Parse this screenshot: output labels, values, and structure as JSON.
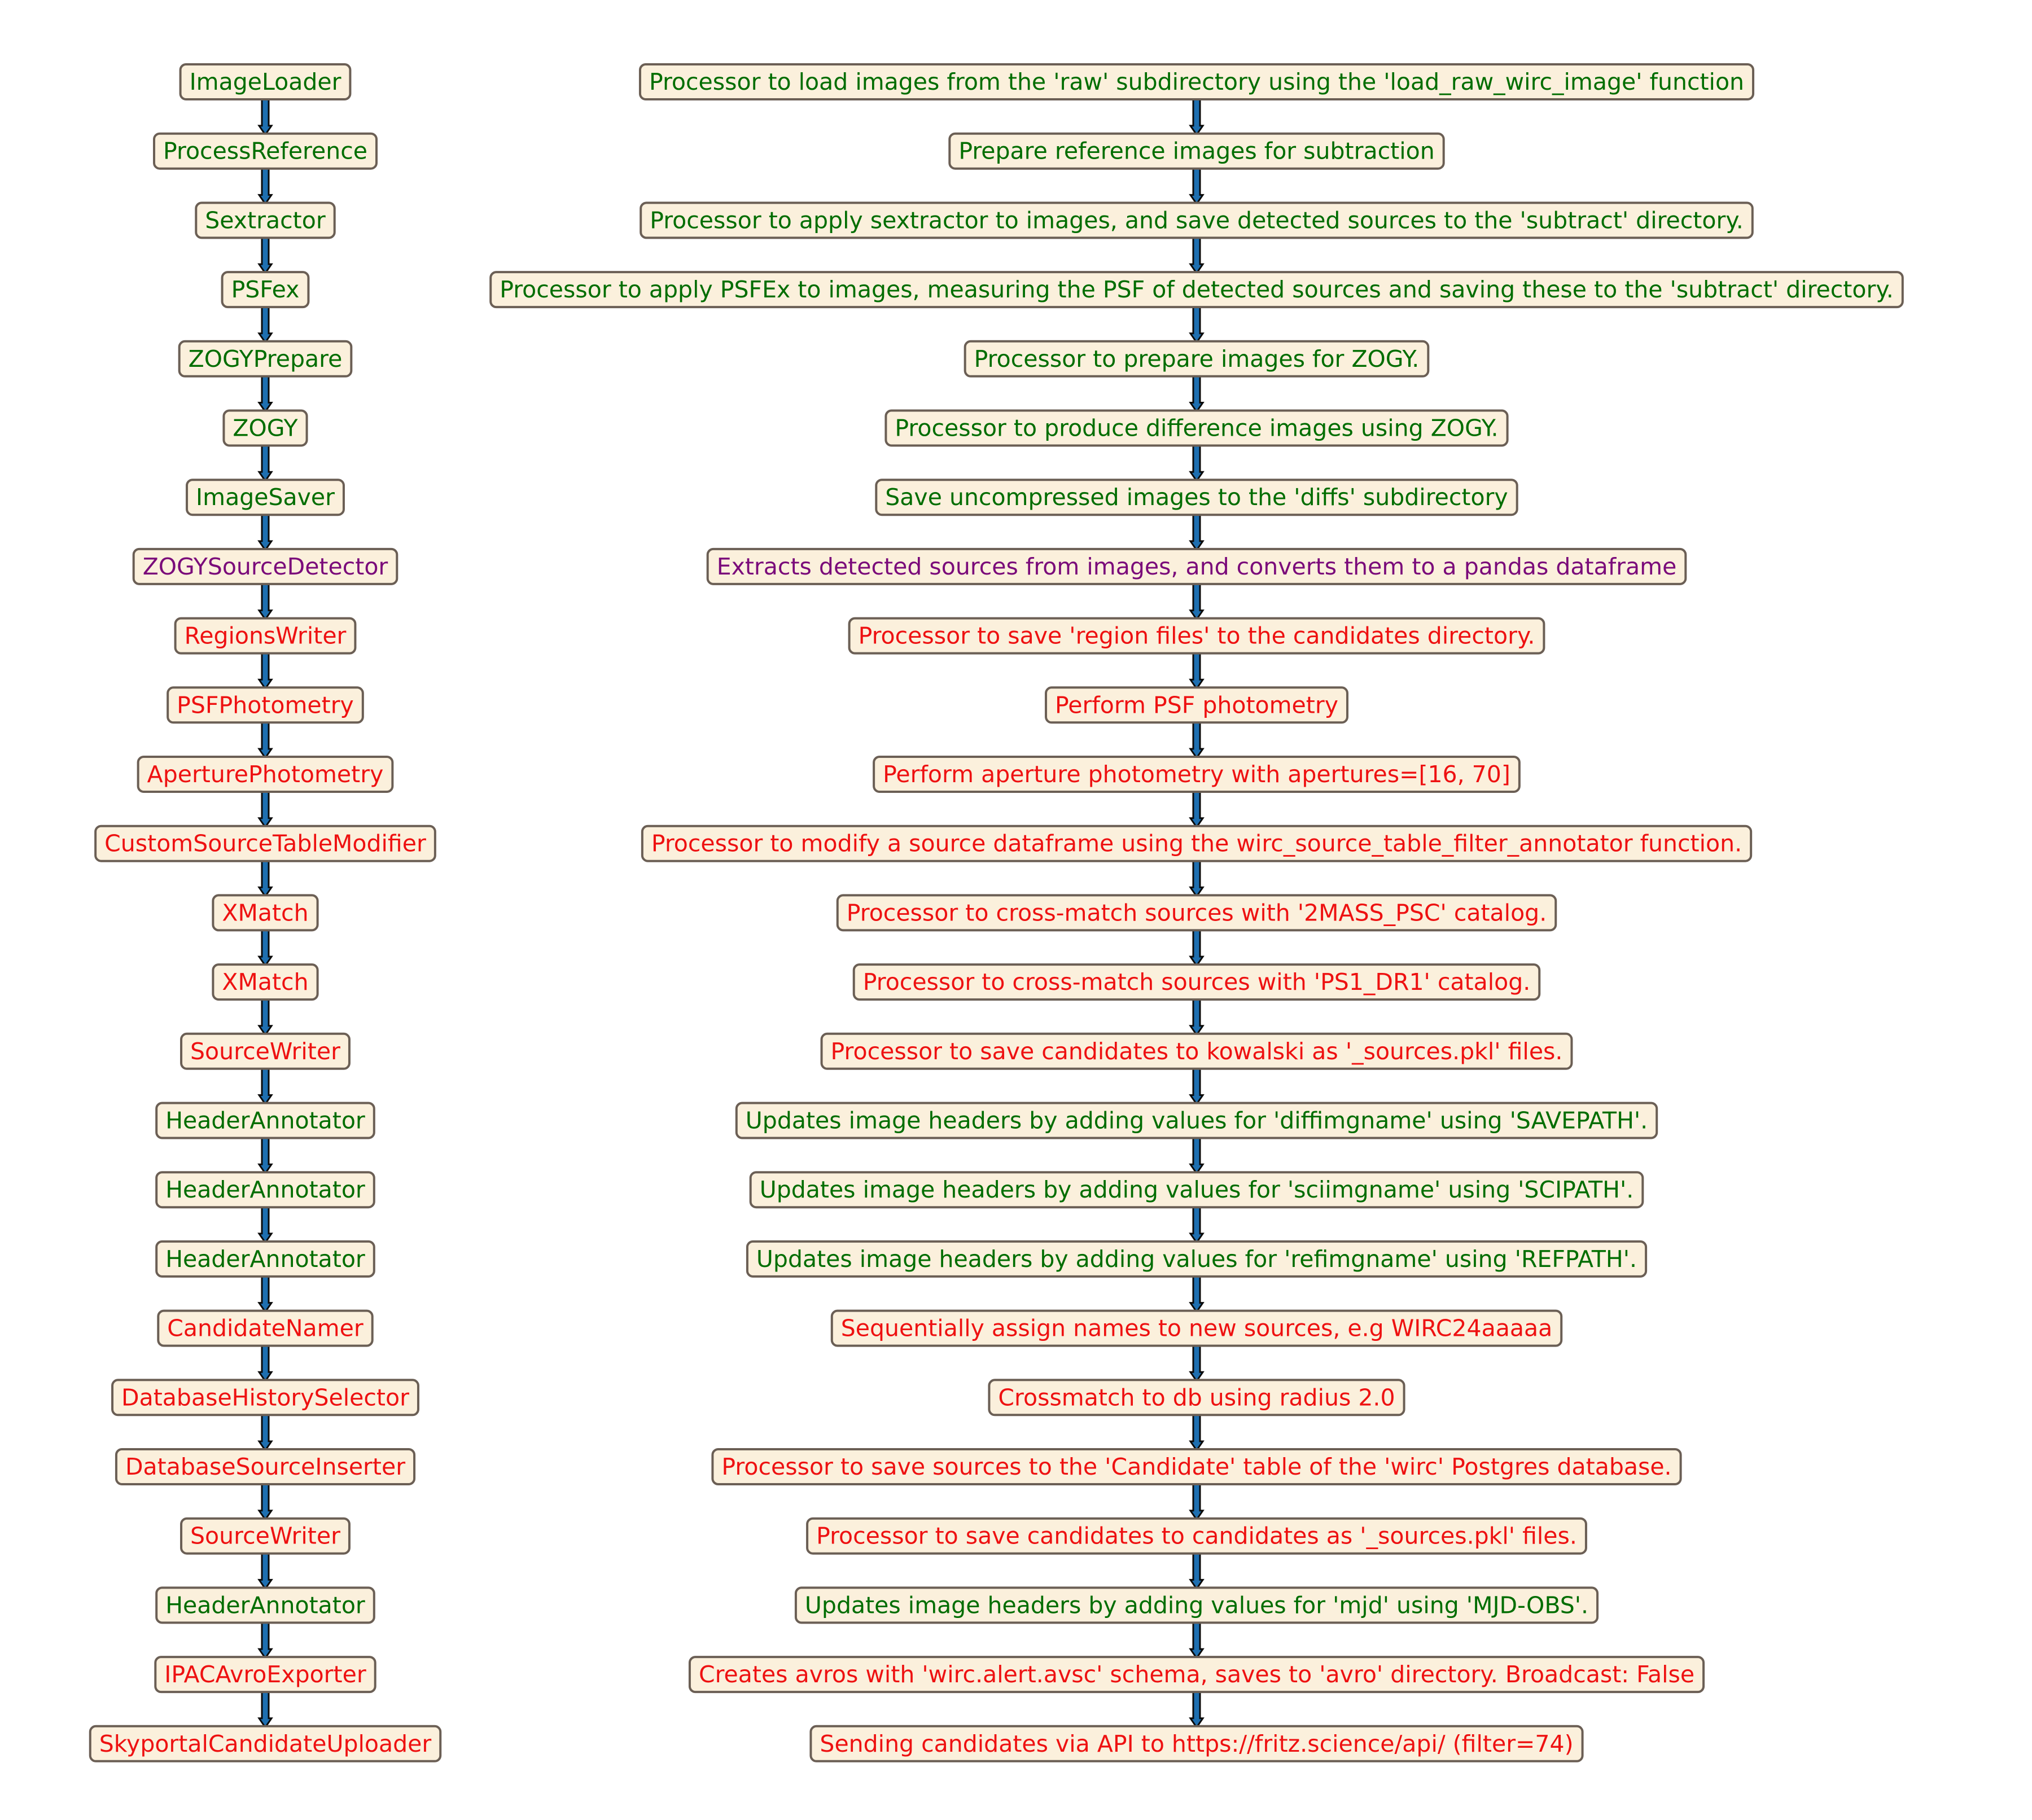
{
  "colors": {
    "green": "#006d00",
    "purple": "#7a0a7a",
    "red": "#ee1111",
    "box_fill": "#fbf0dc",
    "box_stroke": "#6b5f55",
    "arrow_fill": "#1e6fb0",
    "arrow_stroke": "#0a0a0a"
  },
  "steps": [
    {
      "name": "ImageLoader",
      "description": "Processor to load images from the 'raw' subdirectory using the 'load_raw_wirc_image' function",
      "color": "green"
    },
    {
      "name": "ProcessReference",
      "description": "Prepare reference images for subtraction",
      "color": "green"
    },
    {
      "name": "Sextractor",
      "description": "Processor to apply sextractor to images, and save detected sources to the 'subtract' directory.",
      "color": "green"
    },
    {
      "name": "PSFex",
      "description": "Processor to apply PSFEx to images, measuring the PSF of detected sources and saving these to the 'subtract' directory.",
      "color": "green"
    },
    {
      "name": "ZOGYPrepare",
      "description": "Processor to prepare images for ZOGY.",
      "color": "green"
    },
    {
      "name": "ZOGY",
      "description": "Processor to produce difference images using ZOGY.",
      "color": "green"
    },
    {
      "name": "ImageSaver",
      "description": "Save uncompressed images to the 'diffs' subdirectory",
      "color": "green"
    },
    {
      "name": "ZOGYSourceDetector",
      "description": "Extracts detected sources from images, and converts them to a pandas dataframe",
      "color": "purple"
    },
    {
      "name": "RegionsWriter",
      "description": "Processor to save 'region files' to the candidates directory.",
      "color": "red"
    },
    {
      "name": "PSFPhotometry",
      "description": "Perform PSF photometry",
      "color": "red"
    },
    {
      "name": "AperturePhotometry",
      "description": "Perform aperture photometry with apertures=[16, 70]",
      "color": "red"
    },
    {
      "name": "CustomSourceTableModifier",
      "description": "Processor to modify a source dataframe using the wirc_source_table_filter_annotator function.",
      "color": "red"
    },
    {
      "name": "XMatch",
      "description": "Processor to cross-match sources with '2MASS_PSC' catalog.",
      "color": "red"
    },
    {
      "name": "XMatch",
      "description": "Processor to cross-match sources with 'PS1_DR1' catalog.",
      "color": "red"
    },
    {
      "name": "SourceWriter",
      "description": "Processor to save candidates to kowalski as '_sources.pkl' files.",
      "color": "red"
    },
    {
      "name": "HeaderAnnotator",
      "description": "Updates image headers by adding values for 'diffimgname' using 'SAVEPATH'.",
      "color": "green"
    },
    {
      "name": "HeaderAnnotator",
      "description": "Updates image headers by adding values for 'sciimgname' using 'SCIPATH'.",
      "color": "green"
    },
    {
      "name": "HeaderAnnotator",
      "description": "Updates image headers by adding values for 'refimgname' using 'REFPATH'.",
      "color": "green"
    },
    {
      "name": "CandidateNamer",
      "description": "Sequentially assign names to new sources, e.g WIRC24aaaaa",
      "color": "red"
    },
    {
      "name": "DatabaseHistorySelector",
      "description": "Crossmatch to db using radius 2.0",
      "color": "red"
    },
    {
      "name": "DatabaseSourceInserter",
      "description": "Processor to save sources to the 'Candidate' table of the 'wirc' Postgres database.",
      "color": "red"
    },
    {
      "name": "SourceWriter",
      "description": "Processor to save candidates to candidates as '_sources.pkl' files.",
      "color": "red"
    },
    {
      "name": "HeaderAnnotator",
      "description": "Updates image headers by adding values for 'mjd' using 'MJD-OBS'.",
      "color": "green"
    },
    {
      "name": "IPACAvroExporter",
      "description": "Creates avros with 'wirc.alert.avsc' schema,  saves to 'avro' directory. Broadcast: False",
      "color": "red"
    },
    {
      "name": "SkyportalCandidateUploader",
      "description": "Sending candidates via API to https://fritz.science/api/ (filter=74)",
      "color": "red"
    }
  ]
}
